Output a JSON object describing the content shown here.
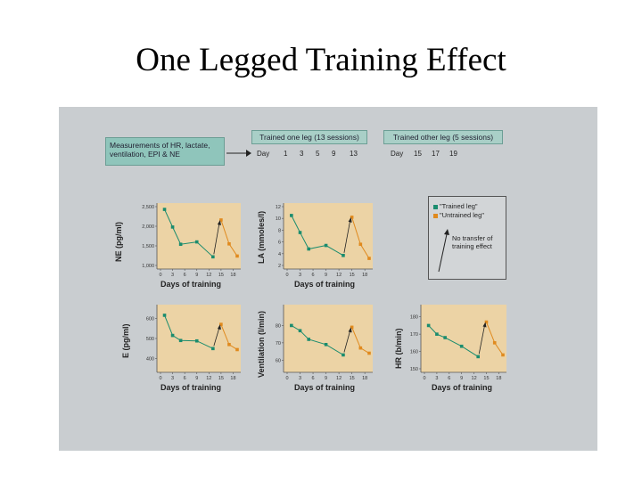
{
  "slide": {
    "title": "One Legged Training Effect"
  },
  "colors": {
    "trained": "#1a8c6e",
    "untrained": "#e08a1e",
    "plot_bg": "#ecd3a5",
    "figure_bg": "#c9cdd0"
  },
  "header": {
    "measure_box": "Measurements of HR, lactate, ventilation, EPI & NE",
    "trained_box": "Trained one leg (13 sessions)",
    "other_box": "Trained other leg (5 sessions)",
    "day_label_1": "Day",
    "day_label_2": "Day",
    "days_one": [
      "1",
      "3",
      "5",
      "9",
      "13"
    ],
    "days_other": [
      "15",
      "17",
      "19"
    ]
  },
  "legend": {
    "trained": "\"Trained leg\"",
    "untrained": "\"Untrained leg\"",
    "note": "No transfer of training effect"
  },
  "chart_data": [
    {
      "type": "line",
      "ylabel": "NE (pg/ml)",
      "xlabel": "Days of training",
      "x_ticks": [
        0,
        3,
        6,
        9,
        12,
        15,
        18
      ],
      "y_ticks": [
        1000,
        1500,
        2000,
        2500
      ],
      "y_tick_labels": [
        "1,000",
        "1,500",
        "2,000",
        "2,500"
      ],
      "ylim": [
        1000,
        2500
      ],
      "xlim": [
        0,
        19
      ],
      "series": [
        {
          "name": "\"Trained leg\"",
          "x": [
            1,
            3,
            5,
            9,
            13
          ],
          "y": [
            2430,
            1980,
            1540,
            1600,
            1220
          ]
        },
        {
          "name": "\"Untrained leg\"",
          "x": [
            15,
            17,
            19
          ],
          "y": [
            2160,
            1550,
            1240
          ]
        }
      ]
    },
    {
      "type": "line",
      "ylabel": "LA (mmoles/l)",
      "xlabel": "Days of training",
      "x_ticks": [
        0,
        3,
        6,
        9,
        12,
        15,
        18
      ],
      "y_ticks": [
        2,
        4,
        6,
        8,
        10,
        12
      ],
      "y_tick_labels": [
        "2",
        "4",
        "6",
        "8",
        "10",
        "12"
      ],
      "ylim": [
        2,
        12
      ],
      "xlim": [
        0,
        19
      ],
      "series": [
        {
          "name": "\"Trained leg\"",
          "x": [
            1,
            3,
            5,
            9,
            13
          ],
          "y": [
            10.5,
            7.6,
            4.8,
            5.4,
            3.7
          ]
        },
        {
          "name": "\"Untrained leg\"",
          "x": [
            15,
            17,
            19
          ],
          "y": [
            10.2,
            5.6,
            3.2
          ]
        }
      ]
    },
    {
      "type": "line",
      "ylabel": "E (pg/ml)",
      "xlabel": "Days of training",
      "x_ticks": [
        0,
        3,
        6,
        9,
        12,
        15,
        18
      ],
      "y_ticks": [
        400,
        500,
        600
      ],
      "y_tick_labels": [
        "400",
        "500",
        "600"
      ],
      "ylim": [
        350,
        650
      ],
      "xlim": [
        0,
        19
      ],
      "series": [
        {
          "name": "\"Trained leg\"",
          "x": [
            1,
            3,
            5,
            9,
            13
          ],
          "y": [
            615,
            515,
            490,
            488,
            450
          ]
        },
        {
          "name": "\"Untrained leg\"",
          "x": [
            15,
            17,
            19
          ],
          "y": [
            570,
            470,
            445
          ]
        }
      ]
    },
    {
      "type": "line",
      "ylabel": "Ventilation (l/min)",
      "xlabel": "Days of training",
      "x_ticks": [
        0,
        3,
        6,
        9,
        12,
        15,
        18
      ],
      "y_ticks": [
        60,
        70,
        80
      ],
      "y_tick_labels": [
        "60",
        "70",
        "80"
      ],
      "ylim": [
        55,
        90
      ],
      "xlim": [
        0,
        19
      ],
      "series": [
        {
          "name": "\"Trained leg\"",
          "x": [
            1,
            3,
            5,
            9,
            13
          ],
          "y": [
            80,
            77,
            72,
            69,
            63
          ]
        },
        {
          "name": "\"Untrained leg\"",
          "x": [
            15,
            17,
            19
          ],
          "y": [
            79,
            67,
            64
          ]
        }
      ]
    },
    {
      "type": "line",
      "ylabel": "HR (b/min)",
      "xlabel": "Days of training",
      "x_ticks": [
        0,
        3,
        6,
        9,
        12,
        15,
        18
      ],
      "y_ticks": [
        150,
        160,
        170,
        180
      ],
      "y_tick_labels": [
        "150",
        "160",
        "170",
        "180"
      ],
      "ylim": [
        150,
        185
      ],
      "xlim": [
        0,
        19
      ],
      "series": [
        {
          "name": "\"Trained leg\"",
          "x": [
            1,
            3,
            5,
            9,
            13
          ],
          "y": [
            175,
            170,
            168,
            163,
            157
          ]
        },
        {
          "name": "\"Untrained leg\"",
          "x": [
            15,
            17,
            19
          ],
          "y": [
            177,
            165,
            158
          ]
        }
      ]
    }
  ]
}
